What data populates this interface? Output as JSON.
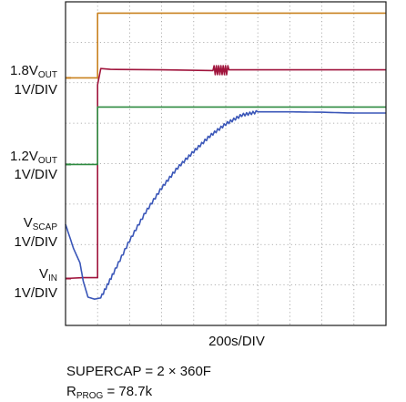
{
  "chart_data": {
    "type": "line",
    "title": "",
    "xlabel": "200s/DIV",
    "ylabel": "",
    "x_divisions": 10,
    "y_divisions": 8,
    "grid": true,
    "channels": [
      {
        "name_main": "1.8V",
        "name_sub": "OUT",
        "scale": "1V/DIV",
        "color": "#c9811f",
        "marker": "0.0"
      },
      {
        "name_main": "1.2V",
        "name_sub": "OUT",
        "scale": "1V/DIV",
        "color": "#2e8b40",
        "marker": "0.0"
      },
      {
        "name_main": "V",
        "name_sub": "SCAP",
        "scale": "1V/DIV",
        "color": "#3a56b8",
        "marker": "0.0"
      },
      {
        "name_main": "V",
        "name_sub": "IN",
        "scale": "1V/DIV",
        "color": "#a0143c",
        "marker": "0.0"
      }
    ],
    "series": [
      {
        "name": "1.8VOUT",
        "color": "#c9811f",
        "points": [
          [
            0,
            6.12
          ],
          [
            1.0,
            6.12
          ],
          [
            1.0,
            7.72
          ],
          [
            10,
            7.72
          ]
        ]
      },
      {
        "name": "VIN",
        "color": "#a0143c",
        "points": [
          [
            0,
            1.16
          ],
          [
            0.55,
            1.18
          ],
          [
            1.0,
            1.18
          ],
          [
            1.0,
            5.95
          ],
          [
            1.1,
            6.35
          ],
          [
            1.4,
            6.33
          ],
          [
            3.0,
            6.32
          ],
          [
            4.6,
            6.3
          ],
          [
            5.1,
            6.32
          ],
          [
            7.0,
            6.32
          ],
          [
            10,
            6.32
          ]
        ]
      },
      {
        "name": "1.2VOUT",
        "color": "#2e8b40",
        "points": [
          [
            0,
            3.98
          ],
          [
            1.0,
            3.98
          ],
          [
            1.0,
            5.4
          ],
          [
            10,
            5.4
          ]
        ]
      },
      {
        "name": "VSCAP",
        "color": "#3a56b8",
        "points": [
          [
            0,
            2.5
          ],
          [
            0.25,
            1.9
          ],
          [
            0.45,
            1.55
          ],
          [
            0.55,
            1.1
          ],
          [
            0.7,
            0.7
          ],
          [
            0.9,
            0.65
          ],
          [
            1.1,
            0.68
          ],
          [
            1.5,
            1.3
          ],
          [
            2.0,
            2.1
          ],
          [
            2.5,
            2.8
          ],
          [
            3.0,
            3.4
          ],
          [
            3.5,
            3.9
          ],
          [
            4.0,
            4.3
          ],
          [
            4.5,
            4.68
          ],
          [
            5.0,
            4.98
          ],
          [
            5.5,
            5.2
          ],
          [
            6.0,
            5.28
          ],
          [
            7.0,
            5.28
          ],
          [
            8.0,
            5.27
          ],
          [
            9.0,
            5.25
          ],
          [
            10,
            5.25
          ]
        ]
      }
    ]
  },
  "footer": {
    "line1": "SUPERCAP = 2 × 360F",
    "line2_main": "R",
    "line2_sub": "PROG",
    "line2_rest": " = 78.7k"
  }
}
